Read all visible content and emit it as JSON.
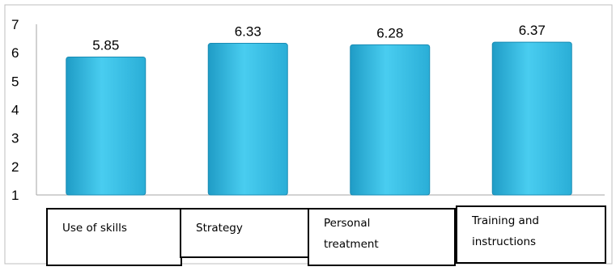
{
  "chart_data": {
    "type": "bar",
    "categories": [
      "Use of skills",
      "Strategy",
      "Personal treatment",
      "Training and instructions"
    ],
    "category_lines": [
      [
        "Use of skills"
      ],
      [
        "Strategy"
      ],
      [
        "Personal",
        "treatment"
      ],
      [
        "Training and",
        "instructions"
      ]
    ],
    "values": [
      5.85,
      6.33,
      6.28,
      6.37
    ],
    "data_labels": [
      "5.85",
      "6.33",
      "6.28",
      "6.37"
    ],
    "ylim": [
      1,
      7
    ],
    "yticks": [
      "1",
      "2",
      "3",
      "4",
      "5",
      "6",
      "7"
    ],
    "bar_color": "#33b8de",
    "grid": false,
    "legend": false
  }
}
